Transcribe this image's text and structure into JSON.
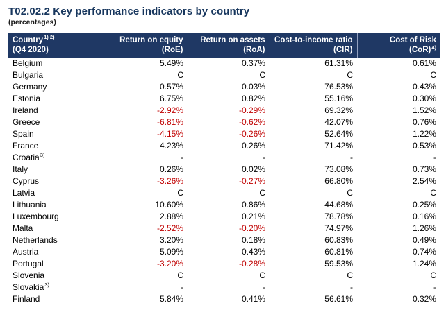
{
  "title": "T02.02.2 Key performance indicators by country",
  "subtitle": "(percentages)",
  "accent_color": "#1f3864",
  "negative_color": "#c00000",
  "chart_data": {
    "type": "table",
    "title": "T02.02.2 Key performance indicators by country",
    "subtitle": "(percentages)",
    "columns": [
      {
        "label": "Country",
        "sup": "1) 2)",
        "line2": "(Q4 2020)"
      },
      {
        "label": "Return on equity",
        "line2": "(RoE)"
      },
      {
        "label": "Return on assets",
        "line2": "(RoA)"
      },
      {
        "label": "Cost-to-income ratio",
        "line2": "(CIR)"
      },
      {
        "label": "Cost of Risk (CoR)",
        "sup": "4)"
      }
    ],
    "rows": [
      {
        "country": "Belgium",
        "roe": "5.49%",
        "roa": "0.37%",
        "cir": "61.31%",
        "cor": "0.61%"
      },
      {
        "country": "Bulgaria",
        "roe": "C",
        "roa": "C",
        "cir": "C",
        "cor": "C"
      },
      {
        "country": "Germany",
        "roe": "0.57%",
        "roa": "0.03%",
        "cir": "76.53%",
        "cor": "0.43%"
      },
      {
        "country": "Estonia",
        "roe": "6.75%",
        "roa": "0.82%",
        "cir": "55.16%",
        "cor": "0.30%"
      },
      {
        "country": "Ireland",
        "roe": "-2.92%",
        "roa": "-0.29%",
        "cir": "69.32%",
        "cor": "1.52%"
      },
      {
        "country": "Greece",
        "roe": "-6.81%",
        "roa": "-0.62%",
        "cir": "42.07%",
        "cor": "0.76%"
      },
      {
        "country": "Spain",
        "roe": "-4.15%",
        "roa": "-0.26%",
        "cir": "52.64%",
        "cor": "1.22%"
      },
      {
        "country": "France",
        "roe": "4.23%",
        "roa": "0.26%",
        "cir": "71.42%",
        "cor": "0.53%"
      },
      {
        "country": "Croatia",
        "country_sup": "3)",
        "roe": "-",
        "roa": "-",
        "cir": "-",
        "cor": "-"
      },
      {
        "country": "Italy",
        "roe": "0.26%",
        "roa": "0.02%",
        "cir": "73.08%",
        "cor": "0.73%"
      },
      {
        "country": "Cyprus",
        "roe": "-3.26%",
        "roa": "-0.27%",
        "cir": "66.80%",
        "cor": "2.54%"
      },
      {
        "country": "Latvia",
        "roe": "C",
        "roa": "C",
        "cir": "C",
        "cor": "C"
      },
      {
        "country": "Lithuania",
        "roe": "10.60%",
        "roa": "0.86%",
        "cir": "44.68%",
        "cor": "0.25%"
      },
      {
        "country": "Luxembourg",
        "roe": "2.88%",
        "roa": "0.21%",
        "cir": "78.78%",
        "cor": "0.16%"
      },
      {
        "country": "Malta",
        "roe": "-2.52%",
        "roa": "-0.20%",
        "cir": "74.97%",
        "cor": "1.26%"
      },
      {
        "country": "Netherlands",
        "roe": "3.20%",
        "roa": "0.18%",
        "cir": "60.83%",
        "cor": "0.49%"
      },
      {
        "country": "Austria",
        "roe": "5.09%",
        "roa": "0.43%",
        "cir": "60.81%",
        "cor": "0.74%"
      },
      {
        "country": "Portugal",
        "roe": "-3.20%",
        "roa": "-0.28%",
        "cir": "59.53%",
        "cor": "1.24%"
      },
      {
        "country": "Slovenia",
        "roe": "C",
        "roa": "C",
        "cir": "C",
        "cor": "C"
      },
      {
        "country": "Slovakia",
        "country_sup": "3)",
        "roe": "-",
        "roa": "-",
        "cir": "-",
        "cor": "-"
      },
      {
        "country": "Finland",
        "roe": "5.84%",
        "roa": "0.41%",
        "cir": "56.61%",
        "cor": "0.32%"
      }
    ]
  }
}
